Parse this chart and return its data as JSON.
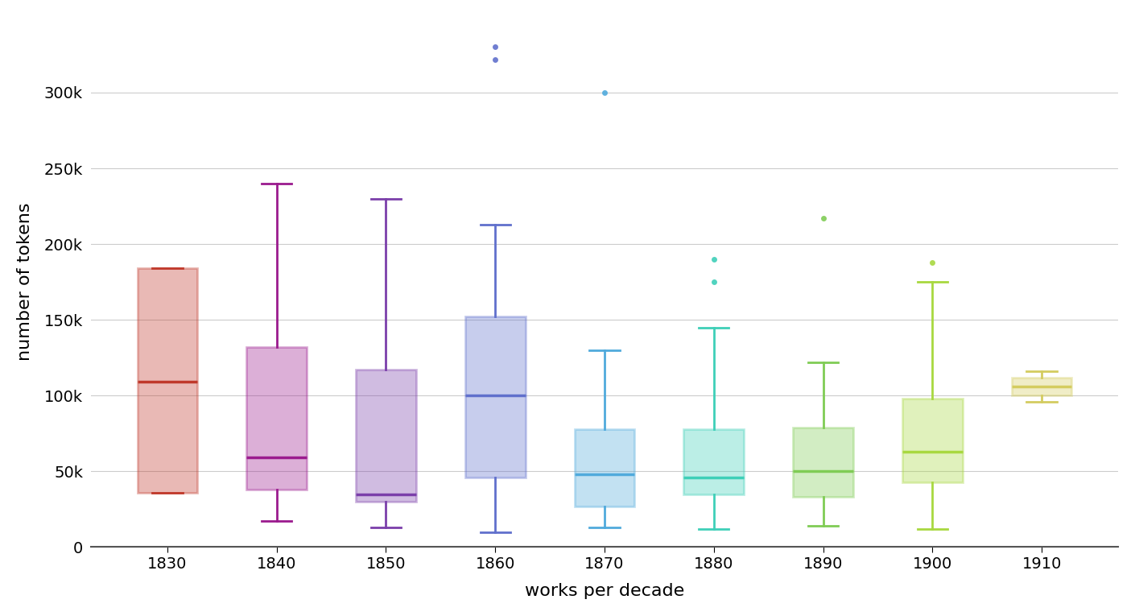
{
  "decades": [
    1830,
    1840,
    1850,
    1860,
    1870,
    1880,
    1890,
    1900,
    1910
  ],
  "colors": [
    "#c0392b",
    "#9b1b8e",
    "#7b3faa",
    "#6070cc",
    "#50aadc",
    "#3ecfb8",
    "#80cc55",
    "#a8d840",
    "#d4cc60"
  ],
  "box_stats": [
    {
      "decade": 1830,
      "whislo": 36000,
      "q1": 36000,
      "med": 109000,
      "q3": 184000,
      "whishi": 184000,
      "fliers": []
    },
    {
      "decade": 1840,
      "whislo": 17000,
      "q1": 38000,
      "med": 59000,
      "q3": 132000,
      "whishi": 240000,
      "fliers": []
    },
    {
      "decade": 1850,
      "whislo": 13000,
      "q1": 30000,
      "med": 35000,
      "q3": 117000,
      "whishi": 230000,
      "fliers": []
    },
    {
      "decade": 1860,
      "whislo": 10000,
      "q1": 46000,
      "med": 100000,
      "q3": 152000,
      "whishi": 213000,
      "fliers": [
        330000,
        322000
      ]
    },
    {
      "decade": 1870,
      "whislo": 13000,
      "q1": 27000,
      "med": 48000,
      "q3": 78000,
      "whishi": 130000,
      "fliers": [
        300000
      ]
    },
    {
      "decade": 1880,
      "whislo": 12000,
      "q1": 35000,
      "med": 46000,
      "q3": 78000,
      "whishi": 145000,
      "fliers": [
        190000,
        175000
      ]
    },
    {
      "decade": 1890,
      "whislo": 14000,
      "q1": 33000,
      "med": 50000,
      "q3": 79000,
      "whishi": 122000,
      "fliers": [
        217000
      ]
    },
    {
      "decade": 1900,
      "whislo": 12000,
      "q1": 43000,
      "med": 63000,
      "q3": 98000,
      "whishi": 175000,
      "fliers": [
        188000
      ]
    },
    {
      "decade": 1910,
      "whislo": 96000,
      "q1": 100000,
      "med": 106000,
      "q3": 112000,
      "whishi": 116000,
      "fliers": []
    }
  ],
  "ylabel": "number of tokens",
  "xlabel": "works per decade",
  "ylim": [
    0,
    350000
  ],
  "yticks": [
    0,
    50000,
    100000,
    150000,
    200000,
    250000,
    300000
  ],
  "ytick_labels": [
    "0",
    "50k",
    "100k",
    "150k",
    "200k",
    "250k",
    "300k"
  ],
  "background_color": "#ffffff",
  "grid_color": "#cccccc",
  "label_fontsize": 16,
  "tick_fontsize": 14,
  "box_width": 0.55,
  "linewidth": 2.0,
  "flier_size": 5
}
